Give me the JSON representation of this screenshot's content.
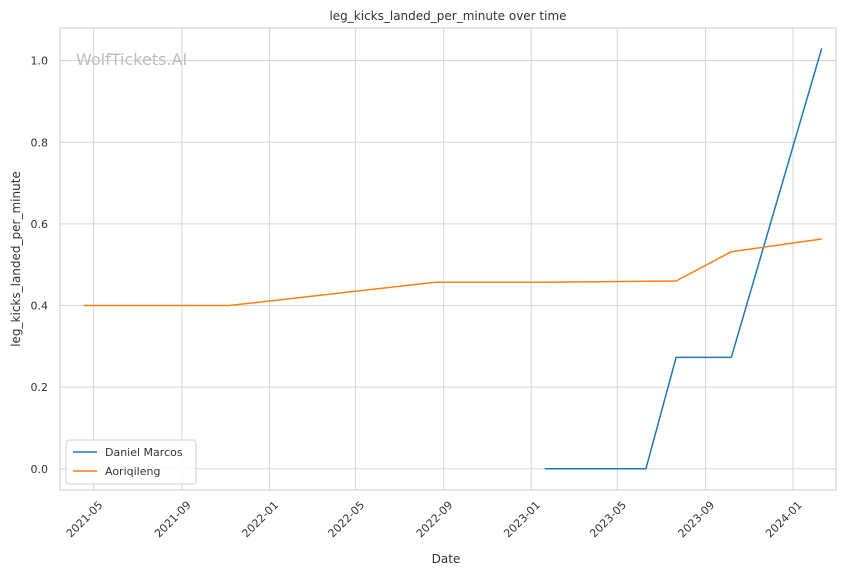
{
  "watermark": "WolfTickets.AI",
  "chart_data": {
    "type": "line",
    "title": "leg_kicks_landed_per_minute over time",
    "xlabel": "Date",
    "ylabel": "leg_kicks_landed_per_minute",
    "x_type": "date",
    "xlim": [
      "2021-03-15",
      "2024-03-01"
    ],
    "ylim": [
      -0.052,
      1.08
    ],
    "x_ticks": [
      "2021-05-01",
      "2021-09-01",
      "2022-01-01",
      "2022-05-01",
      "2022-09-01",
      "2023-01-01",
      "2023-05-01",
      "2023-09-01",
      "2024-01-01"
    ],
    "x_tick_labels": [
      "2021-05",
      "2021-09",
      "2022-01",
      "2022-05",
      "2022-09",
      "2023-01",
      "2023-05",
      "2023-09",
      "2024-01"
    ],
    "y_ticks": [
      0.0,
      0.2,
      0.4,
      0.6,
      0.8,
      1.0
    ],
    "y_tick_labels": [
      "0.0",
      "0.2",
      "0.4",
      "0.6",
      "0.8",
      "1.0"
    ],
    "grid": true,
    "legend_position": "lower-left",
    "series": [
      {
        "name": "Daniel Marcos",
        "color": "#1f77b4",
        "points": [
          {
            "x": "2023-01-20",
            "y": 0.0
          },
          {
            "x": "2023-06-10",
            "y": 0.0
          },
          {
            "x": "2023-07-22",
            "y": 0.273
          },
          {
            "x": "2023-10-07",
            "y": 0.273
          },
          {
            "x": "2024-02-10",
            "y": 1.03
          }
        ]
      },
      {
        "name": "Aoriqileng",
        "color": "#ff7f0e",
        "points": [
          {
            "x": "2021-04-17",
            "y": 0.4
          },
          {
            "x": "2021-11-06",
            "y": 0.4
          },
          {
            "x": "2022-08-20",
            "y": 0.457
          },
          {
            "x": "2023-01-20",
            "y": 0.457
          },
          {
            "x": "2023-07-22",
            "y": 0.46
          },
          {
            "x": "2023-10-07",
            "y": 0.532
          },
          {
            "x": "2024-02-10",
            "y": 0.563
          }
        ]
      }
    ]
  }
}
